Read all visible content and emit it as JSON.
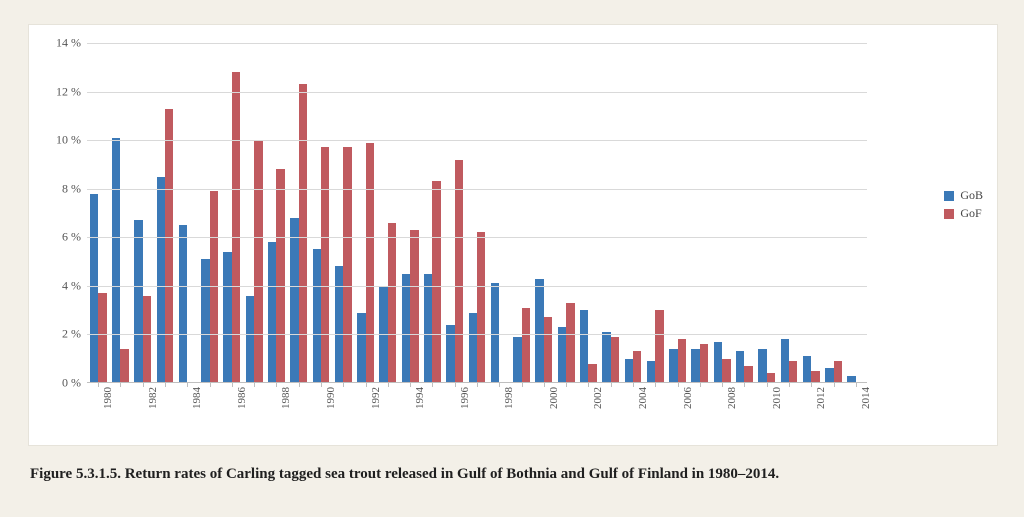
{
  "chart": {
    "type": "bar",
    "background_color": "#ffffff",
    "page_background": "#f3f0e8",
    "grid_color": "#d9d9d9",
    "baseline_color": "#bfbfbf",
    "ylim": [
      0,
      14
    ],
    "y_ticks": [
      0,
      2,
      4,
      6,
      8,
      10,
      12,
      14
    ],
    "y_tick_suffix": " %",
    "axis_label_fontsize": 12,
    "bar_width_ratio": 0.38,
    "years": [
      1980,
      1981,
      1982,
      1983,
      1984,
      1985,
      1986,
      1987,
      1988,
      1989,
      1990,
      1991,
      1992,
      1993,
      1994,
      1995,
      1996,
      1997,
      1998,
      1999,
      2000,
      2001,
      2002,
      2003,
      2004,
      2005,
      2006,
      2007,
      2008,
      2009,
      2010,
      2011,
      2012,
      2013,
      2014
    ],
    "x_label_years": [
      1980,
      1982,
      1984,
      1986,
      1988,
      1990,
      1992,
      1994,
      1996,
      1998,
      2000,
      2002,
      2004,
      2006,
      2008,
      2010,
      2012,
      2014
    ],
    "series": [
      {
        "name": "GoB",
        "color": "#3b79b7",
        "values": [
          7.8,
          10.1,
          6.7,
          8.5,
          6.5,
          5.1,
          5.4,
          3.6,
          5.8,
          6.8,
          5.5,
          4.8,
          2.9,
          4.0,
          4.5,
          4.5,
          2.4,
          2.9,
          4.1,
          1.9,
          4.3,
          2.3,
          3.0,
          2.1,
          1.0,
          0.9,
          1.4,
          1.4,
          1.7,
          1.3,
          1.4,
          1.8,
          1.1,
          0.6,
          0.3
        ]
      },
      {
        "name": "GoF",
        "color": "#c05a5f",
        "values": [
          3.7,
          1.4,
          3.6,
          11.3,
          null,
          7.9,
          12.8,
          10.0,
          8.8,
          12.3,
          9.7,
          9.7,
          9.9,
          6.6,
          6.3,
          8.3,
          9.2,
          6.2,
          null,
          3.1,
          2.7,
          3.3,
          0.8,
          1.9,
          1.3,
          3.0,
          1.8,
          1.6,
          1.0,
          0.7,
          0.4,
          0.9,
          0.5,
          0.9,
          null
        ]
      }
    ],
    "legend": {
      "items": [
        {
          "label": "GoB",
          "color": "#3b79b7"
        },
        {
          "label": "GoF",
          "color": "#c05a5f"
        }
      ],
      "fontsize": 12
    }
  },
  "caption": {
    "text": "Figure 5.3.1.5. Return rates of Carling tagged sea trout released in Gulf of Bothnia and Gulf of Finland in 1980–2014.",
    "fontsize": 15
  }
}
